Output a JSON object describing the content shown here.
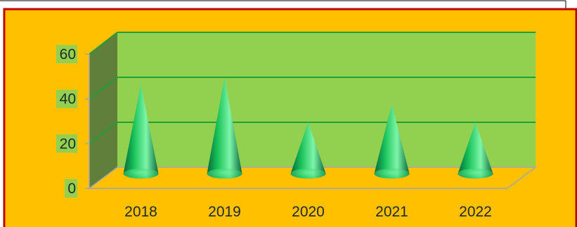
{
  "colors": {
    "plot_area_background": "#ffc000",
    "chart_border": "#c00000",
    "back_wall": "#92d050",
    "side_wall": "#5f7f3a",
    "floor": "#ffc000",
    "gridline": "#1f9e3a",
    "cone_light": "#7ff5a8",
    "cone_mid": "#18c25a",
    "cone_dark": "#05693a",
    "ytick_label_highlight": "#92d050"
  },
  "chart_data": {
    "type": "bar",
    "bar_shape": "cone",
    "three_d": true,
    "categories": [
      "2018",
      "2019",
      "2020",
      "2021",
      "2022"
    ],
    "values": [
      40,
      43,
      23,
      31,
      23
    ],
    "ylim": [
      0,
      60
    ],
    "yticks": [
      "0",
      "20",
      "40",
      "60"
    ],
    "grid": true,
    "legend": "none",
    "title": "",
    "xlabel": "",
    "ylabel": ""
  }
}
